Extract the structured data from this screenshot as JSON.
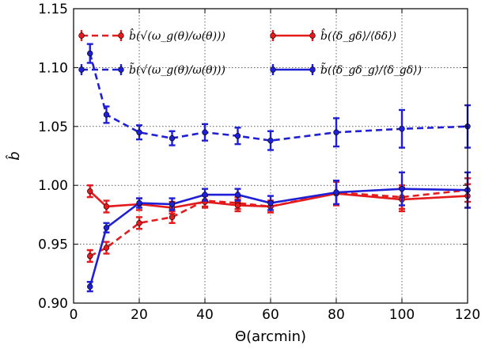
{
  "chart_data": {
    "type": "line",
    "xlabel": "Θ(arcmin)",
    "ylabel": "b̂",
    "xlim": [
      0,
      120
    ],
    "ylim": [
      0.9,
      1.15
    ],
    "xticks": [
      0,
      20,
      40,
      60,
      80,
      100,
      120
    ],
    "yticks": [
      0.9,
      0.95,
      1.0,
      1.05,
      1.1,
      1.15
    ],
    "xtick_labels": [
      "0",
      "20",
      "40",
      "60",
      "80",
      "100",
      "120"
    ],
    "ytick_labels": [
      "0.90",
      "0.95",
      "1.00",
      "1.05",
      "1.10",
      "1.15"
    ],
    "grid": true,
    "legend_position": "top",
    "x": [
      5,
      10,
      20,
      30,
      40,
      50,
      60,
      80,
      100,
      120
    ],
    "series": [
      {
        "name": "b̂(√(ω_g(θ)/ω(θ)))",
        "color": "#e41a1c",
        "linestyle": "dashed",
        "values": [
          0.94,
          0.947,
          0.968,
          0.973,
          0.987,
          0.985,
          0.982,
          0.994,
          0.99,
          0.996
        ],
        "errors": [
          0.005,
          0.005,
          0.005,
          0.005,
          0.005,
          0.005,
          0.005,
          0.01,
          0.01,
          0.01
        ]
      },
      {
        "name": "b̃(√(ω_g(θ)/ω(θ)))",
        "color": "#1f1fd6",
        "linestyle": "dashed",
        "values": [
          1.112,
          1.06,
          1.045,
          1.04,
          1.045,
          1.042,
          1.038,
          1.045,
          1.048,
          1.05
        ],
        "errors": [
          0.008,
          0.007,
          0.006,
          0.006,
          0.007,
          0.007,
          0.008,
          0.012,
          0.016,
          0.018
        ]
      },
      {
        "name": "b̂(⟨δ_gδ⟩/⟨δδ⟩)",
        "color": "#e41a1c",
        "linestyle": "solid",
        "values": [
          0.995,
          0.982,
          0.984,
          0.981,
          0.986,
          0.983,
          0.982,
          0.993,
          0.988,
          0.991
        ],
        "errors": [
          0.005,
          0.005,
          0.005,
          0.005,
          0.005,
          0.005,
          0.005,
          0.01,
          0.01,
          0.01
        ]
      },
      {
        "name": "b̃(⟨δ_gδ_g⟩/⟨δ_gδ⟩)",
        "color": "#1f1fd6",
        "linestyle": "solid",
        "values": [
          0.914,
          0.964,
          0.985,
          0.984,
          0.992,
          0.992,
          0.985,
          0.994,
          0.997,
          0.996
        ],
        "errors": [
          0.004,
          0.004,
          0.004,
          0.005,
          0.005,
          0.005,
          0.006,
          0.01,
          0.014,
          0.015
        ]
      }
    ],
    "legend": [
      {
        "main": "b̂",
        "arg": "(√(ω_g(θ)/ω(θ)))"
      },
      {
        "main": "b̃",
        "arg": "(√(ω_g(θ)/ω(θ)))"
      },
      {
        "main": "b̂",
        "arg": "(⟨δ_gδ⟩/⟨δδ⟩)"
      },
      {
        "main": "b̃",
        "arg": "(⟨δ_gδ_g⟩/⟨δ_gδ⟩)"
      }
    ]
  }
}
